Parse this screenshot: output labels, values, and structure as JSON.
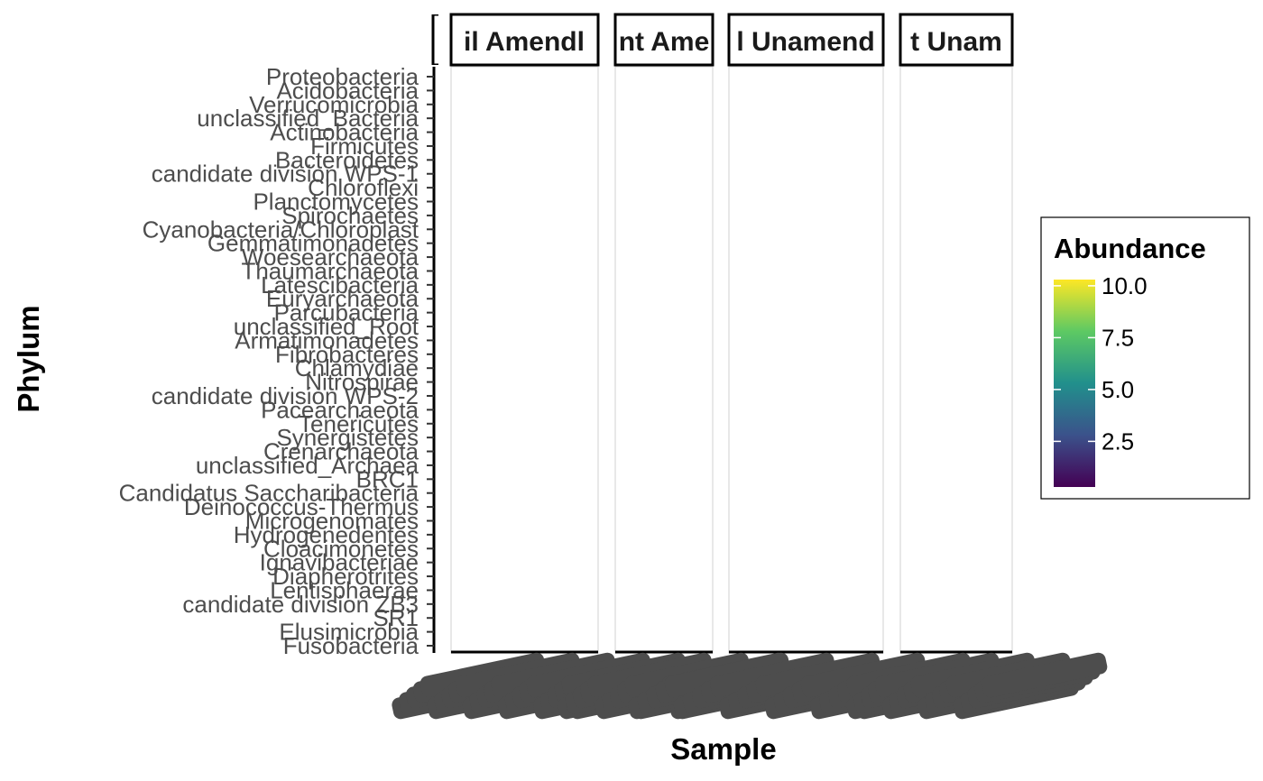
{
  "chart_data": {
    "type": "heatmap",
    "xlabel": "Sample",
    "ylabel": "Phylum",
    "facets": [
      "il Amendl",
      "nt Ame",
      "l Unamend",
      "t Unam"
    ],
    "categories": [
      "Proteobacteria",
      "Acidobacteria",
      "Verrucomicrobia",
      "unclassified_Bacteria",
      "Actinobacteria",
      "Firmicutes",
      "Bacteroidetes",
      "candidate division WPS-1",
      "Chloroflexi",
      "Planctomycetes",
      "Spirochaetes",
      "Cyanobacteria/Chloroplast",
      "Gemmatimonadetes",
      "Woesearchaeota",
      "Thaumarchaeota",
      "Latescibacteria",
      "Euryarchaeota",
      "Parcubacteria",
      "unclassified_Root",
      "Armatimonadetes",
      "Fibrobacteres",
      "Chlamydiae",
      "Nitrospirae",
      "candidate division WPS-2",
      "Pacearchaeota",
      "Tenericutes",
      "Synergistetes",
      "Crenarchaeota",
      "unclassified_Archaea",
      "BRC1",
      "Candidatus Saccharibacteria",
      "Deinococcus-Thermus",
      "Microgenomates",
      "Hydrogenedentes",
      "Cloacimonetes",
      "Ignavibacteriae",
      "Diapherotrites",
      "Lentisphaerae",
      "candidate division ZB3",
      "SR1",
      "Elusimicrobia",
      "Fusobacteria"
    ],
    "legend": {
      "title": "Abundance",
      "placement": "right",
      "ticks": [
        "10.0",
        "7.5",
        "5.0",
        "2.5"
      ],
      "range": [
        0.3,
        10.3
      ],
      "colors": [
        "#440154",
        "#3b528b",
        "#21908c",
        "#5dc963",
        "#fde725"
      ]
    },
    "grid": false
  }
}
